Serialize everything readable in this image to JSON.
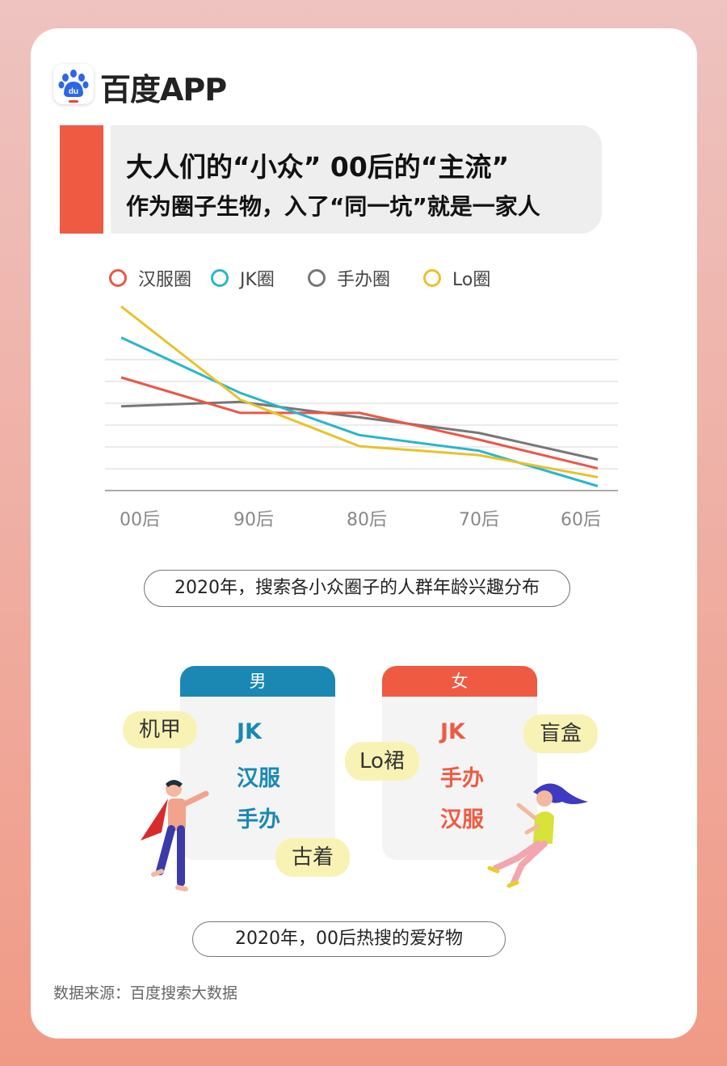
{
  "brand": {
    "name": "百度APP",
    "icon": "baidu-paw-icon"
  },
  "header": {
    "line1": "大人们的“小众” 00后的“主流”",
    "line2": "作为圈子生物，入了“同一坑”就是一家人",
    "accent_color": "#ef5a43"
  },
  "chart_data": {
    "type": "line",
    "categories": [
      "00后",
      "90后",
      "80后",
      "70后",
      "60后"
    ],
    "series": [
      {
        "name": "汉服圈",
        "color": "#e95848",
        "values": [
          5.1,
          3.5,
          3.5,
          2.3,
          1.0
        ]
      },
      {
        "name": "JK圈",
        "color": "#29b6cf",
        "values": [
          6.9,
          4.4,
          2.5,
          1.8,
          0.2
        ]
      },
      {
        "name": "手办圈",
        "color": "#777777",
        "values": [
          3.8,
          4.0,
          3.3,
          2.6,
          1.4
        ]
      },
      {
        "name": "Lo圈",
        "color": "#e9c22a",
        "values": [
          8.3,
          4.1,
          2.0,
          1.6,
          0.6
        ]
      }
    ],
    "ylim": [
      0,
      9
    ],
    "grid": true,
    "legend_position": "top",
    "caption": "2020年，搜索各小众圈子的人群年龄兴趣分布"
  },
  "hobbies": {
    "male": {
      "title": "男",
      "color": "#1a88b3",
      "items": [
        "JK",
        "汉服",
        "手办"
      ],
      "side_tags": [
        "机甲",
        "古着"
      ]
    },
    "female": {
      "title": "女",
      "color": "#ef5a43",
      "items": [
        "JK",
        "手办",
        "汉服"
      ],
      "side_tags": [
        "Lo裙",
        "盲盒"
      ]
    },
    "caption": "2020年，00后热搜的爱好物"
  },
  "source": "数据来源：百度搜索大数据"
}
